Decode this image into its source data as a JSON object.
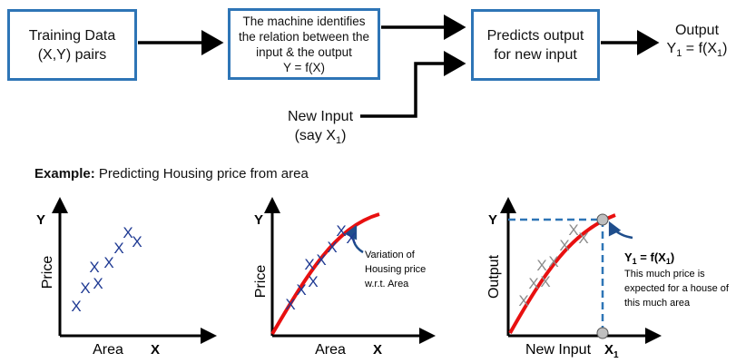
{
  "flow": {
    "training_box": {
      "line1": "Training Data",
      "line2": "(X,Y) pairs"
    },
    "machine_box": {
      "line1": "The machine identifies",
      "line2": "the relation between the",
      "line3": "input & the output",
      "line4": "Y = f(X)"
    },
    "predict_box": {
      "line1": "Predicts output",
      "line2": "for new input"
    },
    "output": {
      "line1": "Output",
      "y": "Y",
      "sub": "1",
      "eq": " = f(X",
      "sub2": "1",
      "close": ")"
    },
    "new_input": {
      "line1": "New Input",
      "line2_prefix": "(say X",
      "sub": "1",
      "line2_suffix": ")"
    }
  },
  "example": {
    "bold": "Example:",
    "text": " Predicting Housing price from area"
  },
  "plots": {
    "plot1": {
      "y_axis": "Y",
      "x_axis": "X",
      "ylabel": "Price",
      "xlabel": "Area",
      "marker": "X"
    },
    "plot2": {
      "y_axis": "Y",
      "x_axis": "X",
      "ylabel": "Price",
      "xlabel": "Area",
      "marker": "X",
      "note": [
        "Variation of",
        "Housing price",
        "w.r.t. Area"
      ]
    },
    "plot3": {
      "y_axis": "Y",
      "x_axis": "X",
      "x_sub": "1",
      "ylabel": "Output",
      "xlabel": "New Input",
      "marker": "X",
      "result_y": "Y",
      "result_sub": "1",
      "result_eq": " = f(X",
      "result_sub2": "1",
      "result_close": ")",
      "note": [
        "This much price is",
        "expected for a house of",
        "this much area"
      ]
    }
  },
  "colors": {
    "box_border": "#2e75b6",
    "marker": "#1f3a93",
    "marker_gray": "#8c8c8c",
    "curve": "#e81010",
    "dashed": "#2e75b6",
    "dot": "#bfbfbf"
  }
}
